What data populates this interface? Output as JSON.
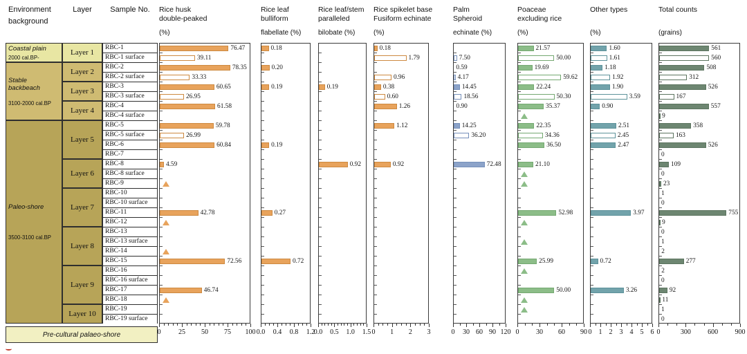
{
  "figure": {
    "left_table": {
      "env_header_line1": "Environment",
      "env_header_line2": "background",
      "layer_header": "Layer",
      "sample_header": "Sample No.",
      "env_zones": [
        {
          "name": "Coastal plain",
          "date": "2000 cal.BP-",
          "row_span": 2,
          "color": "#e8e6a3"
        },
        {
          "name": "Stable backbeach",
          "date": "3100-2000 cal.BP",
          "row_span": 6,
          "color": "#cfbb72"
        },
        {
          "name": "Paleo-shore",
          "date": "3500-3100 cal.BP",
          "row_span": 21,
          "color": "#b7a458"
        }
      ],
      "layers": [
        {
          "label": "Layer 1",
          "row_span": 2,
          "zone": 0
        },
        {
          "label": "Layer 2",
          "row_span": 2,
          "zone": 1
        },
        {
          "label": "Layer 3",
          "row_span": 2,
          "zone": 1
        },
        {
          "label": "Layer 4",
          "row_span": 2,
          "zone": 1
        },
        {
          "label": "Layer 5",
          "row_span": 4,
          "zone": 2
        },
        {
          "label": "Layer 6",
          "row_span": 3,
          "zone": 2
        },
        {
          "label": "Layer 7",
          "row_span": 4,
          "zone": 2
        },
        {
          "label": "Layer 8",
          "row_span": 4,
          "zone": 2
        },
        {
          "label": "Layer 9",
          "row_span": 4,
          "zone": 2
        },
        {
          "label": "Layer 10",
          "row_span": 2,
          "zone": 2
        }
      ],
      "footer": {
        "label": "Pre-cultural palaeo-shore",
        "color": "#f2f0c2"
      }
    },
    "chart_data": {
      "type": "bar",
      "orientation": "horizontal",
      "legend_note": "solid bar = cultural-layer sample; hollow bar = surface sample; triangle = trace occurrence",
      "samples": [
        "RBC-1",
        "RBC-1 surface",
        "RBC-2",
        "RBC-2 surface",
        "RBC-3",
        "RBC-3 surface",
        "RBC-4",
        "RBC-4 surface",
        "RBC-5",
        "RBC-5 surface",
        "RBC-6",
        "RBC-7",
        "RBC-8",
        "RBC-8 surface",
        "RBC-9",
        "RBC-10",
        "RBC-10 surface",
        "RBC-11",
        "RBC-12",
        "RBC-13",
        "RBC-13 surface",
        "RBC-14",
        "RBC-15",
        "RBC-16",
        "RBC-16 surface",
        "RBC-17",
        "RBC-18",
        "RBC-19",
        "RBC-19 surface"
      ],
      "panels": [
        {
          "id": "rice-husk-double-peaked",
          "title_lines": [
            "Rice husk",
            "double-peaked"
          ],
          "unit": "(%)",
          "xmax": 100,
          "ticks": [
            0,
            25,
            50,
            75,
            100
          ],
          "tick_labels": [
            "0",
            "25",
            "50",
            "75",
            "100"
          ],
          "minor_per_major": 5,
          "fill": "#e8a35c",
          "stroke": "#cd8940",
          "values": [
            "76.47",
            "39.11",
            "78.35",
            "33.33",
            "60.65",
            "26.95",
            "61.58",
            null,
            "59.78",
            "26.99",
            "60.84",
            null,
            "4.59",
            null,
            "T",
            null,
            null,
            "42.78",
            "T",
            null,
            null,
            "T",
            "72.56",
            null,
            null,
            "46.74",
            "T",
            null,
            null
          ]
        },
        {
          "id": "rice-leaf-bulliform-flabellate",
          "title_lines": [
            "Rice leaf",
            "bulliform"
          ],
          "unit": "flabellate (%)",
          "xmax": 1.2,
          "ticks": [
            0,
            0.4,
            0.8,
            1.2
          ],
          "tick_labels": [
            "0.0",
            "0.4",
            "0.8",
            "1.2"
          ],
          "minor_per_major": 4,
          "fill": "#e8a35c",
          "stroke": "#cd8940",
          "values": [
            "0.18",
            null,
            "0.20",
            null,
            "0.19",
            null,
            null,
            null,
            null,
            null,
            "0.19",
            null,
            null,
            null,
            null,
            null,
            null,
            "0.27",
            null,
            null,
            null,
            null,
            "0.72",
            null,
            null,
            null,
            null,
            null,
            null
          ]
        },
        {
          "id": "rice-leaf-stem-paralleled-bilobate",
          "title_lines": [
            "Rice leaf/stem",
            "paralleled"
          ],
          "unit": "bilobate (%)",
          "xmax": 1.5,
          "ticks": [
            0,
            0.5,
            1.0,
            1.5
          ],
          "tick_labels": [
            "0.0",
            "0.5",
            "1.0",
            "1.5"
          ],
          "minor_per_major": 5,
          "fill": "#e8a35c",
          "stroke": "#cd8940",
          "values": [
            null,
            null,
            null,
            null,
            "0.19",
            null,
            null,
            null,
            null,
            null,
            null,
            null,
            "0.92",
            null,
            null,
            null,
            null,
            null,
            null,
            null,
            null,
            null,
            null,
            null,
            null,
            null,
            null,
            null,
            null
          ]
        },
        {
          "id": "rice-spikelet-base-fusiform-echinate",
          "title_lines": [
            "Rice spikelet base",
            "Fusiform echinate"
          ],
          "unit": "(%)",
          "xmax": 3,
          "ticks": [
            0,
            1,
            2,
            3
          ],
          "tick_labels": [
            "0",
            "1",
            "2",
            "3"
          ],
          "minor_per_major": 4,
          "fill": "#e8a35c",
          "stroke": "#cd8940",
          "values": [
            "0.18",
            "1.79",
            null,
            "0.96",
            "0.38",
            "0.60",
            "1.26",
            null,
            "1.12",
            null,
            null,
            null,
            "0.92",
            null,
            null,
            null,
            null,
            null,
            null,
            null,
            null,
            null,
            null,
            null,
            null,
            null,
            null,
            null,
            null
          ]
        },
        {
          "id": "palm-spheroid-echinate",
          "title_lines": [
            "Palm",
            "Spheroid"
          ],
          "unit": "echinate (%)",
          "xmax": 120,
          "ticks": [
            0,
            30,
            60,
            90,
            120
          ],
          "tick_labels": [
            "0",
            "30",
            "60",
            "90",
            "120"
          ],
          "minor_per_major": 2,
          "fill": "#8ca3c9",
          "stroke": "#758fba",
          "values": [
            null,
            "7.50",
            "0.59",
            "4.17",
            "14.45",
            "18.56",
            "0.90",
            null,
            "14.25",
            "36.20",
            null,
            null,
            "72.48",
            null,
            null,
            null,
            null,
            null,
            null,
            null,
            null,
            null,
            null,
            null,
            null,
            null,
            null,
            null,
            null
          ]
        },
        {
          "id": "poaceae-excluding-rice",
          "title_lines": [
            "Poaceae",
            "excluding rice"
          ],
          "unit": "(%)",
          "xmax": 90,
          "ticks": [
            0,
            30,
            60,
            90
          ],
          "tick_labels": [
            "0",
            "30",
            "60",
            "90"
          ],
          "minor_per_major": 3,
          "fill": "#8cbd88",
          "stroke": "#74a871",
          "values": [
            "21.57",
            "50.00",
            "19.69",
            "59.62",
            "22.24",
            "50.30",
            "35.37",
            "T",
            "22.35",
            "34.36",
            "36.50",
            null,
            "21.10",
            "T",
            "T",
            null,
            null,
            "52.98",
            "T",
            null,
            "T",
            null,
            "25.99",
            "T",
            null,
            "50.00",
            "T",
            "T",
            null
          ]
        },
        {
          "id": "other-types",
          "title_lines": [
            "Other types"
          ],
          "unit": "(%)",
          "xmax": 6,
          "ticks": [
            0,
            1,
            2,
            3,
            4,
            5,
            6
          ],
          "tick_labels": [
            "0",
            "1",
            "2",
            "3",
            "4",
            "5",
            "6"
          ],
          "minor_per_major": 2,
          "fill": "#72a3ab",
          "stroke": "#5d929a",
          "values": [
            "1.60",
            "1.61",
            "1.18",
            "1.92",
            "1.90",
            "3.59",
            "0.90",
            null,
            "2.51",
            "2.45",
            "2.47",
            null,
            null,
            null,
            null,
            null,
            null,
            "3.97",
            null,
            null,
            null,
            null,
            "0.72",
            null,
            null,
            "3.26",
            null,
            null,
            null
          ]
        },
        {
          "id": "total-counts",
          "title_lines": [
            "Total counts"
          ],
          "unit": "(grains)",
          "xmax": 900,
          "ticks": [
            0,
            300,
            600,
            900
          ],
          "tick_labels": [
            "0",
            "300",
            "600",
            "900"
          ],
          "minor_per_major": 3,
          "fill": "#6d8671, ",
          "stroke": "#5c745f",
          "values": [
            "561",
            "560",
            "508",
            "312",
            "526",
            "167",
            "557",
            "9",
            "358",
            "163",
            "526",
            "0",
            "109",
            "0",
            "23",
            "1",
            "0",
            "755",
            "9",
            "0",
            "1",
            "2",
            "277",
            "2",
            "0",
            "92",
            "11",
            "1",
            "0"
          ]
        }
      ]
    }
  }
}
